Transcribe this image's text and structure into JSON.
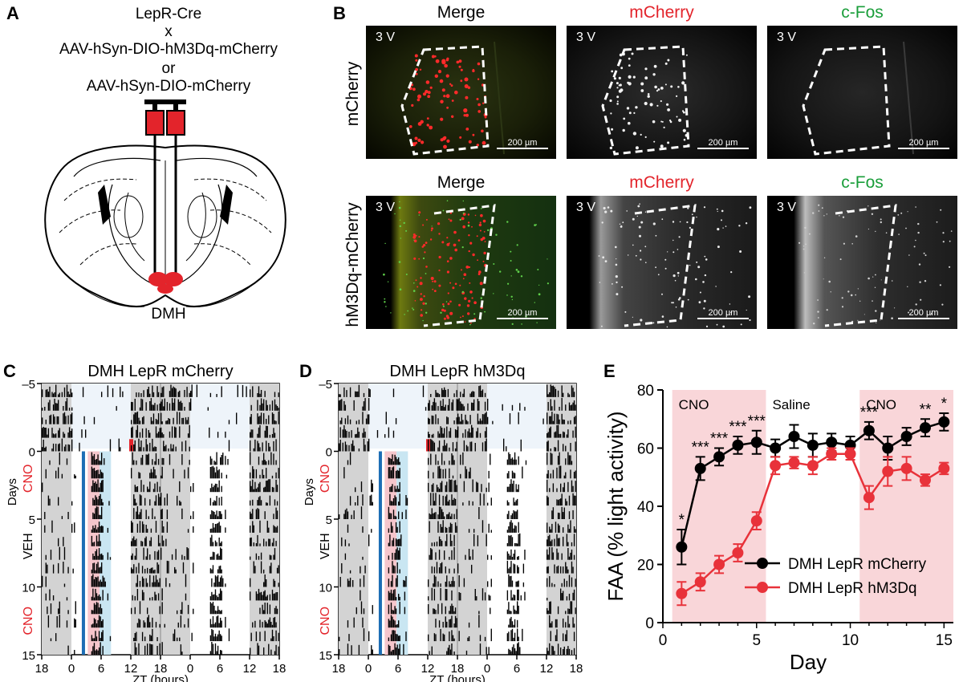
{
  "panelA": {
    "label": "A",
    "lines": [
      "LepR-Cre",
      "x",
      "AAV-hSyn-DIO-hM3Dq-mCherry",
      "or",
      "AAV-hSyn-DIO-mCherry"
    ],
    "region": "DMH"
  },
  "panelB": {
    "label": "B",
    "columns": [
      "Merge",
      "mCherry",
      "c-Fos"
    ],
    "column_colors": [
      "#000000",
      "#e3242b",
      "#1a9e3a"
    ],
    "rows": [
      "mCherry",
      "hM3Dq-mCherry"
    ],
    "region_tag": "3 V",
    "scale_bar": "200 µm"
  },
  "panelC": {
    "label": "C",
    "title": "DMH LepR mCherry",
    "xlabel": "ZT (hours)",
    "xticks": [
      "18",
      "0",
      "6",
      "12",
      "18",
      "0",
      "6",
      "12",
      "18"
    ],
    "yticks": [
      "–5",
      "0",
      "5",
      "10",
      "15"
    ],
    "ylabel": "Days",
    "phase_labels": [
      "CNO",
      "VEH",
      "CNO"
    ]
  },
  "panelD": {
    "label": "D",
    "title": "DMH LepR hM3Dq",
    "xlabel": "ZT (hours)",
    "xticks": [
      "18",
      "0",
      "6",
      "12",
      "18",
      "0",
      "6",
      "12",
      "18"
    ],
    "yticks": [
      "–5",
      "0",
      "5",
      "10",
      "15"
    ],
    "ylabel": "Days",
    "phase_labels": [
      "CNO",
      "VEH",
      "CNO"
    ]
  },
  "panelE": {
    "label": "E",
    "chart_data": {
      "type": "line",
      "xlabel": "Day",
      "ylabel": "FAA (% light activity)",
      "xlim": [
        0,
        15.5
      ],
      "ylim": [
        0,
        80
      ],
      "xticks": [
        0,
        5,
        10,
        15
      ],
      "yticks": [
        0,
        20,
        40,
        60,
        80
      ],
      "phases": [
        {
          "name": "CNO",
          "from": 0.5,
          "to": 5.5,
          "shaded": true
        },
        {
          "name": "Saline",
          "from": 5.5,
          "to": 10.5,
          "shaded": false
        },
        {
          "name": "CNO",
          "from": 10.5,
          "to": 15.5,
          "shaded": true
        }
      ],
      "series": [
        {
          "name": "DMH LepR mCherry",
          "color": "#000000",
          "x": [
            1,
            2,
            3,
            4,
            5,
            6,
            7,
            8,
            9,
            10,
            11,
            12,
            13,
            14,
            15
          ],
          "y": [
            26,
            53,
            57,
            61,
            62,
            60,
            64,
            61,
            62,
            61,
            66,
            60,
            64,
            67,
            69
          ],
          "err": [
            6,
            4,
            3,
            3,
            4,
            3,
            4,
            4,
            3,
            3,
            3,
            4,
            3,
            3,
            3
          ]
        },
        {
          "name": "DMH LepR hM3Dq",
          "color": "#e8323a",
          "x": [
            1,
            2,
            3,
            4,
            5,
            6,
            7,
            8,
            9,
            10,
            11,
            12,
            13,
            14,
            15
          ],
          "y": [
            10,
            14,
            20,
            24,
            35,
            54,
            55,
            54,
            58,
            58,
            43,
            52,
            53,
            49,
            53
          ],
          "err": [
            4,
            3,
            3,
            3,
            3,
            3,
            2,
            3,
            2,
            2,
            4,
            5,
            4,
            2,
            2
          ]
        }
      ],
      "significance": [
        {
          "x": 1,
          "label": "*"
        },
        {
          "x": 2,
          "label": "***"
        },
        {
          "x": 3,
          "label": "***"
        },
        {
          "x": 4,
          "label": "***"
        },
        {
          "x": 5,
          "label": "***"
        },
        {
          "x": 11,
          "label": "***"
        },
        {
          "x": 14,
          "label": "**"
        },
        {
          "x": 15,
          "label": "*"
        }
      ],
      "legend_position": "bottom-right"
    }
  }
}
